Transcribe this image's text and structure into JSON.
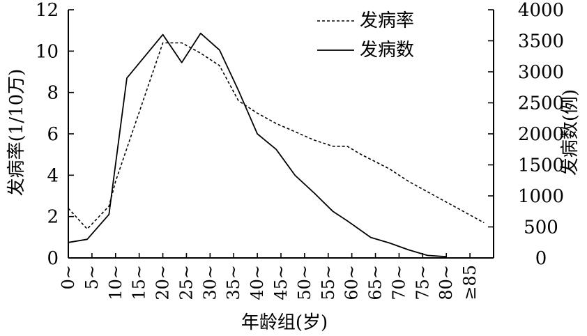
{
  "chart_data": {
    "type": "line",
    "categories": [
      "0~",
      "5~",
      "10~",
      "15~",
      "20~",
      "25~",
      "30~",
      "35~",
      "40~",
      "45~",
      "50~",
      "55~",
      "60~",
      "65~",
      "70~",
      "75~",
      "80~",
      "≥85"
    ],
    "xlabel": "年龄组(岁)",
    "ylabel_left": "发病率(1/10万)",
    "ylabel_right": "发病数(例)",
    "ylim_left": [
      0,
      12
    ],
    "yticks_left": [
      "0",
      "2",
      "4",
      "6",
      "8",
      "10",
      "12"
    ],
    "ylim_right": [
      0,
      4000
    ],
    "yticks_right": [
      "0",
      "500",
      "1000",
      "1500",
      "2000",
      "2500",
      "3000",
      "3500",
      "4000"
    ],
    "legend_position": "top-right",
    "grid": false,
    "series": [
      {
        "name": "发病率",
        "axis": "left",
        "style": "dashed",
        "points": [
          {
            "x": 0,
            "y": 2.4
          },
          {
            "x": 2,
            "y": 1.4
          },
          {
            "x": 4.3,
            "y": 2.5
          },
          {
            "x": 5,
            "y": 3.7
          },
          {
            "x": 10,
            "y": 10.4
          },
          {
            "x": 12,
            "y": 10.4
          },
          {
            "x": 14,
            "y": 9.9
          },
          {
            "x": 16,
            "y": 9.3
          },
          {
            "x": 18,
            "y": 7.6
          },
          {
            "x": 20,
            "y": 7.0
          },
          {
            "x": 22,
            "y": 6.5
          },
          {
            "x": 24,
            "y": 6.1
          },
          {
            "x": 26,
            "y": 5.7
          },
          {
            "x": 28,
            "y": 5.4
          },
          {
            "x": 29.5,
            "y": 5.4
          },
          {
            "x": 31,
            "y": 5.0
          },
          {
            "x": 34,
            "y": 4.3
          },
          {
            "x": 36,
            "y": 3.7
          },
          {
            "x": 38,
            "y": 3.2
          },
          {
            "x": 40,
            "y": 2.7
          },
          {
            "x": 42,
            "y": 2.2
          },
          {
            "x": 44,
            "y": 1.7
          }
        ]
      },
      {
        "name": "发病数",
        "axis": "right",
        "style": "solid",
        "points": [
          {
            "x": 0,
            "y": 250
          },
          {
            "x": 2,
            "y": 300
          },
          {
            "x": 4.3,
            "y": 700
          },
          {
            "x": 6.2,
            "y": 2900
          },
          {
            "x": 10,
            "y": 3600
          },
          {
            "x": 12,
            "y": 3150
          },
          {
            "x": 14,
            "y": 3620
          },
          {
            "x": 16,
            "y": 3350
          },
          {
            "x": 18,
            "y": 2700
          },
          {
            "x": 20,
            "y": 2000
          },
          {
            "x": 22,
            "y": 1750
          },
          {
            "x": 24,
            "y": 1330
          },
          {
            "x": 26,
            "y": 1050
          },
          {
            "x": 28,
            "y": 750
          },
          {
            "x": 29.5,
            "y": 600
          },
          {
            "x": 32,
            "y": 330
          },
          {
            "x": 34,
            "y": 240
          },
          {
            "x": 36,
            "y": 130
          },
          {
            "x": 38,
            "y": 40
          },
          {
            "x": 40,
            "y": 20
          }
        ]
      }
    ]
  }
}
